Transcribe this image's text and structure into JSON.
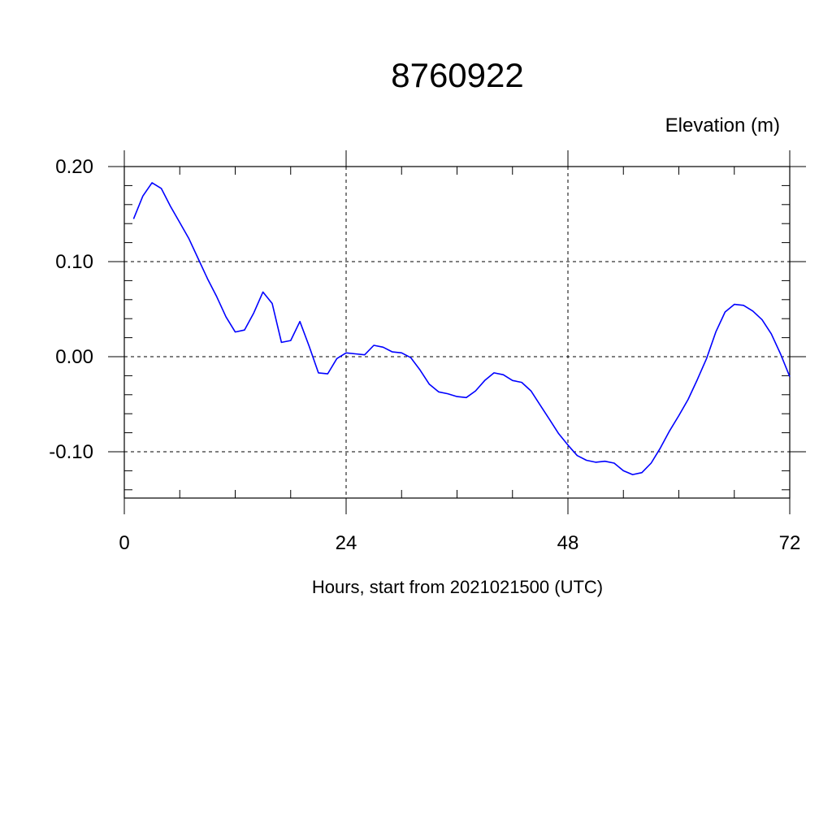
{
  "chart_data": {
    "type": "line",
    "title": "8760922",
    "ylabel": "Elevation (m)",
    "xlabel": "Hours, start from 2021021500 (UTC)",
    "xlim": [
      0,
      72
    ],
    "ylim": [
      -0.15,
      0.22
    ],
    "x_ticks": [
      0,
      24,
      48,
      72
    ],
    "x_tick_labels": [
      "0",
      "24",
      "48",
      "72"
    ],
    "y_ticks": [
      0.2,
      0.1,
      0.0,
      -0.1
    ],
    "y_tick_labels": [
      "0.20",
      "0.10",
      "0.00",
      "-0.10"
    ],
    "grid": true,
    "series": [
      {
        "color": "#0000ff",
        "x": [
          1,
          2,
          3,
          4,
          5,
          6,
          7,
          8,
          9,
          10,
          11,
          12,
          13,
          14,
          15,
          16,
          17,
          18,
          19,
          20,
          21,
          22,
          23,
          24,
          25,
          26,
          27,
          28,
          29,
          30,
          31,
          32,
          33,
          34,
          35,
          36,
          37,
          38,
          39,
          40,
          41,
          42,
          43,
          44,
          45,
          46,
          47,
          48,
          49,
          50,
          51,
          52,
          53,
          54,
          55,
          56,
          57,
          58,
          59,
          60,
          61,
          62,
          63,
          64,
          65,
          66,
          67,
          68,
          69,
          70,
          71,
          72
        ],
        "y": [
          0.145,
          0.169,
          0.183,
          0.177,
          0.158,
          0.141,
          0.124,
          0.103,
          0.082,
          0.063,
          0.042,
          0.026,
          0.028,
          0.046,
          0.068,
          0.056,
          0.015,
          0.017,
          0.037,
          0.011,
          -0.017,
          -0.018,
          -0.002,
          0.004,
          0.003,
          0.002,
          0.012,
          0.01,
          0.005,
          0.004,
          -0.001,
          -0.014,
          -0.029,
          -0.037,
          -0.039,
          -0.042,
          -0.043,
          -0.036,
          -0.025,
          -0.017,
          -0.019,
          -0.025,
          -0.027,
          -0.036,
          -0.051,
          -0.066,
          -0.081,
          -0.093,
          -0.104,
          -0.109,
          -0.111,
          -0.11,
          -0.112,
          -0.12,
          -0.124,
          -0.122,
          -0.112,
          -0.096,
          -0.078,
          -0.062,
          -0.045,
          -0.024,
          -0.002,
          0.026,
          0.047,
          0.055,
          0.054,
          0.048,
          0.039,
          0.024,
          0.003,
          -0.021
        ]
      }
    ]
  }
}
